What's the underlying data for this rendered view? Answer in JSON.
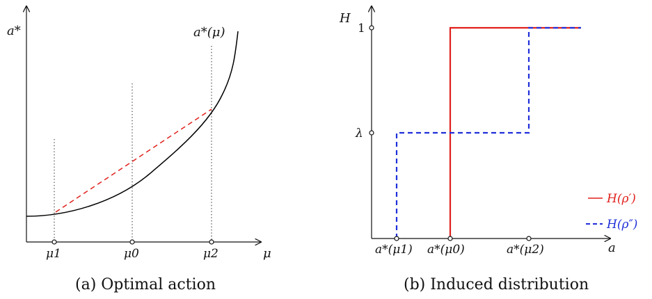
{
  "panel_a": {
    "y_axis_label": "a*",
    "x_axis_label": "μ",
    "curve_label": "a*(μ)",
    "ticks": [
      "μ1",
      "μ0",
      "μ2"
    ],
    "caption": "(a) Optimal action",
    "dashed_chord_color": "#e0201c",
    "curve_color": "#000000"
  },
  "panel_b": {
    "y_axis_label": "H",
    "x_axis_label": "a",
    "y_ticks": [
      "1",
      "λ"
    ],
    "x_ticks": [
      "a*(μ1)",
      "a*(μ0)",
      "a*(μ2)"
    ],
    "legend": [
      {
        "symbol": "—",
        "label": "H(ρ′)",
        "color": "#e0201c"
      },
      {
        "symbol": "- -",
        "label": "H(ρ″)",
        "color": "#1f2fd9"
      }
    ],
    "caption": "(b) Induced distribution"
  }
}
